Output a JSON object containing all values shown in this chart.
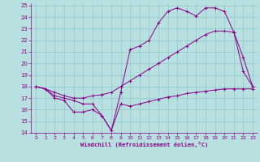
{
  "xlabel": "Windchill (Refroidissement éolien,°C)",
  "xlim": [
    -0.5,
    23.5
  ],
  "ylim": [
    14,
    25.2
  ],
  "yticks": [
    14,
    15,
    16,
    17,
    18,
    19,
    20,
    21,
    22,
    23,
    24,
    25
  ],
  "xticks": [
    0,
    1,
    2,
    3,
    4,
    5,
    6,
    7,
    8,
    9,
    10,
    11,
    12,
    13,
    14,
    15,
    16,
    17,
    18,
    19,
    20,
    21,
    22,
    23
  ],
  "bg_color": "#b8e0e0",
  "grid_color": "#90c8c8",
  "line_color": "#880088",
  "series": [
    {
      "x": [
        0,
        1,
        2,
        3,
        4,
        5,
        6,
        7,
        8,
        9,
        10,
        11,
        12,
        13,
        14,
        15,
        16,
        17,
        18,
        19,
        20,
        21,
        22,
        23
      ],
      "y": [
        18.0,
        17.8,
        17.0,
        16.8,
        15.8,
        15.8,
        16.0,
        15.5,
        14.2,
        16.5,
        16.3,
        16.5,
        16.7,
        16.9,
        17.1,
        17.2,
        17.4,
        17.5,
        17.6,
        17.7,
        17.8,
        17.8,
        17.8,
        17.8
      ]
    },
    {
      "x": [
        0,
        1,
        2,
        3,
        4,
        5,
        6,
        7,
        8,
        9,
        10,
        11,
        12,
        13,
        14,
        15,
        16,
        17,
        18,
        19,
        20,
        21,
        22,
        23
      ],
      "y": [
        18.0,
        17.8,
        17.2,
        17.0,
        16.8,
        16.5,
        16.5,
        15.5,
        14.2,
        17.5,
        21.2,
        21.5,
        22.0,
        23.5,
        24.5,
        24.8,
        24.5,
        24.1,
        24.8,
        24.8,
        24.5,
        22.7,
        19.3,
        18.0
      ]
    },
    {
      "x": [
        0,
        1,
        2,
        3,
        4,
        5,
        6,
        7,
        8,
        9,
        10,
        11,
        12,
        13,
        14,
        15,
        16,
        17,
        18,
        19,
        20,
        21,
        22,
        23
      ],
      "y": [
        18.0,
        17.8,
        17.5,
        17.2,
        17.0,
        17.0,
        17.2,
        17.3,
        17.5,
        18.0,
        18.5,
        19.0,
        19.5,
        20.0,
        20.5,
        21.0,
        21.5,
        22.0,
        22.5,
        22.8,
        22.8,
        22.7,
        20.5,
        18.0
      ]
    }
  ]
}
